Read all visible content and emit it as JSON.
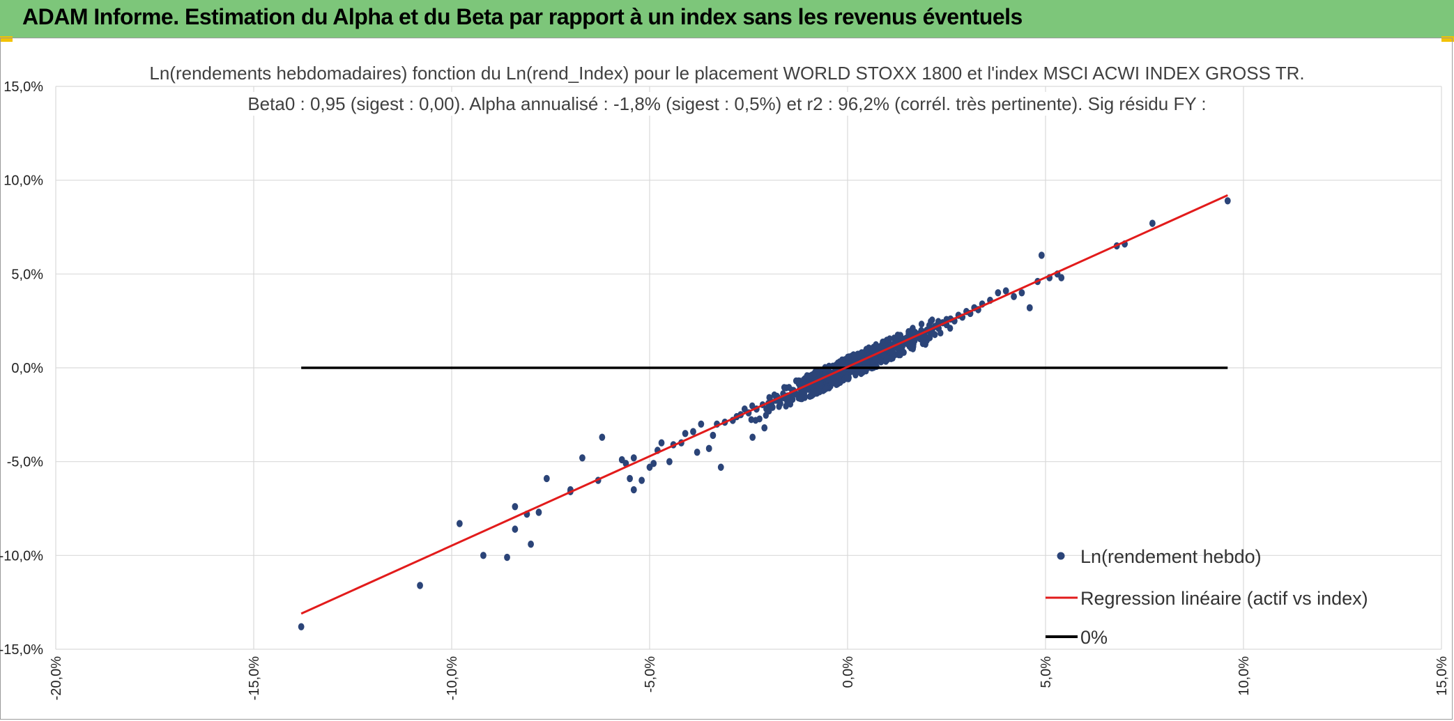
{
  "header": {
    "title": "ADAM Informe. Estimation du Alpha et du Beta par rapport à un index sans les revenus éventuels"
  },
  "colors": {
    "header_bg": "#7dc67a",
    "points": "#2b4478",
    "regression": "#e21b1b",
    "zero_line": "#000000",
    "grid": "#d9d9d9"
  },
  "chart_data": {
    "type": "scatter",
    "title": "Ln(rendements hebdomadaires) fonction du Ln(rend_Index) pour le placement WORLD STOXX 1800 et l'index MSCI ACWI INDEX GROSS TR.",
    "subtitle": "Beta0 : 0,95 (sigest : 0,00). Alpha annualisé : -1,8% (sigest : 0,5%) et r2 : 96,2% (corrél. très pertinente). Sig résidu FY :",
    "xlim": [
      -0.2,
      0.15
    ],
    "ylim": [
      -0.15,
      0.15
    ],
    "x_ticks": [
      -0.2,
      -0.15,
      -0.1,
      -0.05,
      0.0,
      0.05,
      0.1,
      0.15
    ],
    "x_tick_labels": [
      "-20,0%",
      "-15,0%",
      "-10,0%",
      "-5,0%",
      "0,0%",
      "5,0%",
      "10,0%",
      "15,0%"
    ],
    "y_ticks": [
      0.15,
      0.1,
      0.05,
      0.0,
      -0.05,
      -0.1,
      -0.15
    ],
    "y_tick_labels": [
      "15,0%",
      "10,0%",
      "5,0%",
      "0,0%",
      "-5,0%",
      "-10,0%",
      "-15,0%"
    ],
    "grid": true,
    "legend_position": "bottom-right",
    "series": [
      {
        "name": "Ln(rendement hebdo)",
        "kind": "points",
        "points": [
          [
            -0.138,
            -0.138
          ],
          [
            -0.108,
            -0.116
          ],
          [
            -0.098,
            -0.083
          ],
          [
            -0.092,
            -0.1
          ],
          [
            -0.086,
            -0.101
          ],
          [
            -0.084,
            -0.074
          ],
          [
            -0.084,
            -0.086
          ],
          [
            -0.081,
            -0.078
          ],
          [
            -0.08,
            -0.094
          ],
          [
            -0.078,
            -0.077
          ],
          [
            -0.076,
            -0.059
          ],
          [
            -0.07,
            -0.066
          ],
          [
            -0.07,
            -0.065
          ],
          [
            -0.067,
            -0.048
          ],
          [
            -0.063,
            -0.06
          ],
          [
            -0.062,
            -0.037
          ],
          [
            -0.057,
            -0.049
          ],
          [
            -0.056,
            -0.051
          ],
          [
            -0.055,
            -0.059
          ],
          [
            -0.054,
            -0.065
          ],
          [
            -0.054,
            -0.048
          ],
          [
            -0.052,
            -0.06
          ],
          [
            -0.05,
            -0.053
          ],
          [
            -0.049,
            -0.051
          ],
          [
            -0.048,
            -0.044
          ],
          [
            -0.047,
            -0.04
          ],
          [
            -0.045,
            -0.05
          ],
          [
            -0.044,
            -0.041
          ],
          [
            -0.042,
            -0.04
          ],
          [
            -0.041,
            -0.035
          ],
          [
            -0.039,
            -0.034
          ],
          [
            -0.038,
            -0.045
          ],
          [
            -0.037,
            -0.03
          ],
          [
            -0.035,
            -0.043
          ],
          [
            -0.034,
            -0.036
          ],
          [
            -0.033,
            -0.03
          ],
          [
            -0.032,
            -0.053
          ],
          [
            -0.031,
            -0.029
          ],
          [
            -0.029,
            -0.028
          ],
          [
            -0.028,
            -0.026
          ],
          [
            -0.027,
            -0.025
          ],
          [
            -0.026,
            -0.022
          ],
          [
            -0.025,
            -0.024
          ],
          [
            -0.024,
            -0.037
          ],
          [
            -0.023,
            -0.022
          ],
          [
            -0.021,
            -0.032
          ],
          [
            -0.02,
            -0.019
          ],
          [
            -0.019,
            -0.021
          ],
          [
            -0.018,
            -0.017
          ],
          [
            -0.017,
            -0.019
          ],
          [
            -0.016,
            -0.016
          ],
          [
            -0.015,
            -0.015
          ],
          [
            -0.014,
            -0.012
          ],
          [
            -0.013,
            -0.014
          ],
          [
            -0.012,
            -0.011
          ],
          [
            -0.011,
            -0.012
          ],
          [
            -0.01,
            -0.009
          ],
          [
            -0.009,
            -0.01
          ],
          [
            -0.008,
            -0.007
          ],
          [
            -0.007,
            -0.008
          ],
          [
            -0.006,
            -0.005
          ],
          [
            -0.005,
            -0.006
          ],
          [
            -0.004,
            -0.003
          ],
          [
            -0.003,
            -0.004
          ],
          [
            -0.002,
            -0.001
          ],
          [
            -0.001,
            -0.002
          ],
          [
            0.0,
            0.0
          ],
          [
            0.001,
            -0.001
          ],
          [
            0.002,
            0.002
          ],
          [
            0.003,
            0.001
          ],
          [
            0.004,
            0.004
          ],
          [
            0.005,
            0.003
          ],
          [
            0.006,
            0.006
          ],
          [
            0.007,
            0.005
          ],
          [
            0.008,
            0.008
          ],
          [
            0.009,
            0.007
          ],
          [
            0.01,
            0.01
          ],
          [
            0.011,
            0.009
          ],
          [
            0.012,
            0.012
          ],
          [
            0.013,
            0.011
          ],
          [
            0.014,
            0.014
          ],
          [
            0.015,
            0.013
          ],
          [
            0.016,
            0.016
          ],
          [
            0.017,
            0.015
          ],
          [
            0.018,
            0.018
          ],
          [
            0.019,
            0.017
          ],
          [
            0.02,
            0.02
          ],
          [
            0.021,
            0.019
          ],
          [
            0.022,
            0.022
          ],
          [
            0.023,
            0.021
          ],
          [
            0.024,
            0.024
          ],
          [
            0.025,
            0.023
          ],
          [
            0.026,
            0.026
          ],
          [
            0.027,
            0.025
          ],
          [
            0.028,
            0.028
          ],
          [
            0.029,
            0.027
          ],
          [
            0.03,
            0.03
          ],
          [
            0.031,
            0.029
          ],
          [
            0.032,
            0.032
          ],
          [
            0.033,
            0.031
          ],
          [
            0.034,
            0.034
          ],
          [
            0.036,
            0.036
          ],
          [
            0.038,
            0.04
          ],
          [
            0.04,
            0.041
          ],
          [
            0.042,
            0.038
          ],
          [
            0.044,
            0.04
          ],
          [
            0.046,
            0.032
          ],
          [
            0.048,
            0.046
          ],
          [
            0.049,
            0.06
          ],
          [
            0.051,
            0.048
          ],
          [
            0.053,
            0.05
          ],
          [
            0.054,
            0.048
          ],
          [
            0.068,
            0.065
          ],
          [
            0.07,
            0.066
          ],
          [
            0.077,
            0.077
          ],
          [
            0.096,
            0.089
          ]
        ]
      },
      {
        "name": "Regression linéaire (actif vs index)",
        "kind": "line",
        "points": [
          [
            -0.138,
            -0.131
          ],
          [
            0.096,
            0.092
          ]
        ]
      },
      {
        "name": "0%",
        "kind": "line",
        "points": [
          [
            -0.138,
            0.0
          ],
          [
            0.096,
            0.0
          ]
        ]
      }
    ]
  }
}
